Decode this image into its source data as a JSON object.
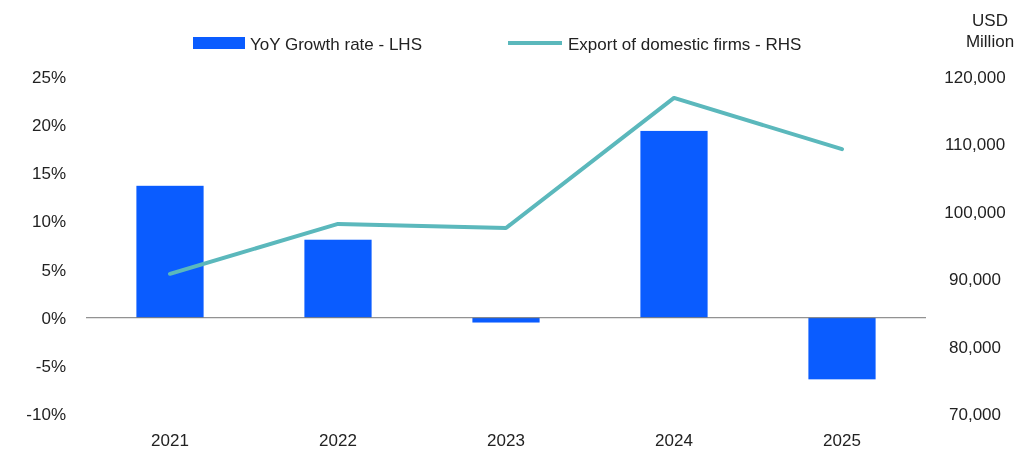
{
  "chart_data": {
    "type": "bar",
    "categories": [
      "2021",
      "2022",
      "2023",
      "2024",
      "2025"
    ],
    "series": [
      {
        "name": "YoY Growth rate - LHS",
        "color": "#0a5cff",
        "values": [
          13.7,
          8.1,
          -0.5,
          19.4,
          -6.4
        ]
      },
      {
        "name": "Export of domestic firms - RHS",
        "type": "line",
        "axis": "y2",
        "color": "#5bb8bc",
        "values": [
          90800,
          98200,
          97600,
          116900,
          109300
        ]
      }
    ],
    "ylim": [
      -10,
      25
    ],
    "yticks": [
      {
        "value": -10,
        "label": "-10%"
      },
      {
        "value": -5,
        "label": "-5%"
      },
      {
        "value": 0,
        "label": "0%"
      },
      {
        "value": 5,
        "label": "5%"
      },
      {
        "value": 10,
        "label": "10%"
      },
      {
        "value": 15,
        "label": "15%"
      },
      {
        "value": 20,
        "label": "20%"
      },
      {
        "value": 25,
        "label": "25%"
      }
    ],
    "y2lim": [
      70000,
      120000
    ],
    "y2ticks": [
      {
        "value": 70000,
        "label": "70,000"
      },
      {
        "value": 80000,
        "label": "80,000"
      },
      {
        "value": 90000,
        "label": "90,000"
      },
      {
        "value": 100000,
        "label": "100,000"
      },
      {
        "value": 110000,
        "label": "110,000"
      },
      {
        "value": 120000,
        "label": "120,000"
      }
    ],
    "y2label": "USD Million",
    "legend": "top",
    "marker": "none",
    "line_style": "solid"
  }
}
